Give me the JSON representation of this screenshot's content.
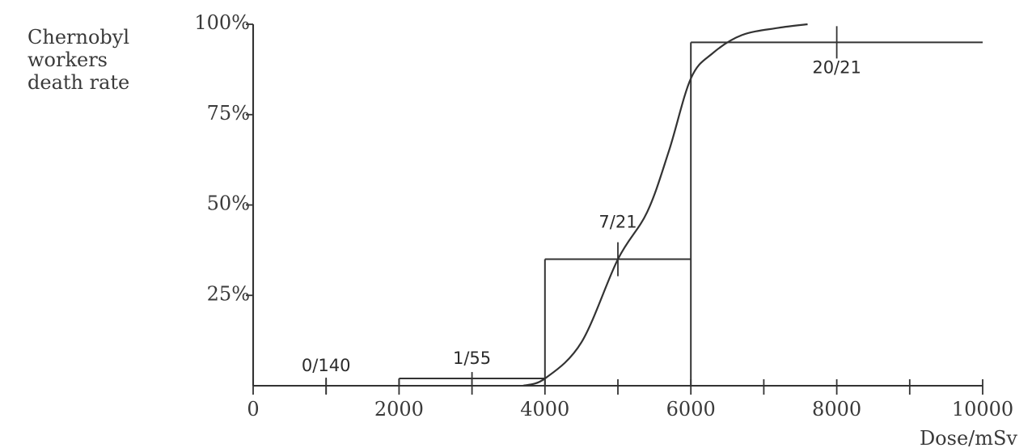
{
  "chart_data": {
    "type": "line",
    "title": "",
    "y_axis_title_lines": [
      "Chernobyl",
      "workers",
      "death rate"
    ],
    "x_axis_title": "Dose/mSv",
    "xlim": [
      0,
      10000
    ],
    "ylim": [
      0,
      100
    ],
    "x_ticks": [
      {
        "value": 0,
        "label": "0"
      },
      {
        "value": 2000,
        "label": "2000"
      },
      {
        "value": 4000,
        "label": "4000"
      },
      {
        "value": 6000,
        "label": "6000"
      },
      {
        "value": 8000,
        "label": "8000"
      },
      {
        "value": 10000,
        "label": "10000"
      }
    ],
    "y_ticks": [
      {
        "value": 25,
        "label": "25%"
      },
      {
        "value": 50,
        "label": "50%"
      },
      {
        "value": 75,
        "label": "75%"
      },
      {
        "value": 100,
        "label": "100%"
      }
    ],
    "grid": false,
    "legend": "none",
    "series": [
      {
        "curve": {
          "x": [
            3700,
            4000,
            4500,
            5000,
            5400,
            5700,
            6000,
            6300,
            6700,
            7200,
            7600
          ],
          "y": [
            0,
            2,
            12,
            35,
            48,
            65,
            85,
            92,
            97,
            99,
            100
          ]
        }
      }
    ],
    "points": [
      {
        "x": 1000,
        "y": 0,
        "label": "0/140",
        "x_err": [
          1000,
          1000
        ]
      },
      {
        "x": 3000,
        "y": 2,
        "label": "1/55",
        "x_err": [
          2000,
          4000
        ]
      },
      {
        "x": 5000,
        "y": 35,
        "label": "7/21",
        "x_err": [
          4000,
          6000
        ]
      },
      {
        "x": 8000,
        "y": 95,
        "label": "20/21",
        "x_err": [
          6000,
          10000
        ]
      }
    ]
  }
}
